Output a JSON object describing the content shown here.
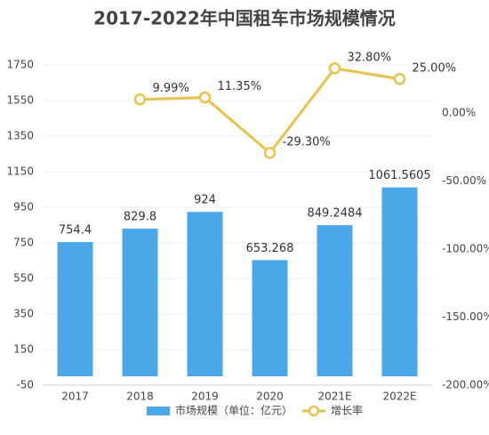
{
  "chart_data": {
    "type": "bar-line",
    "title": "2017-2022年中国租车市场规模情况",
    "categories": [
      "2017",
      "2018",
      "2019",
      "2020",
      "2021E",
      "2022E"
    ],
    "series": [
      {
        "name": "市场规模（单位：亿元）",
        "type": "bar",
        "color": "#4aa8e8",
        "values": [
          754.4,
          829.8,
          924,
          653.268,
          849.2484,
          1061.5605
        ]
      },
      {
        "name": "增长率",
        "type": "line",
        "axis": "y2",
        "color": "#e8c24a",
        "values": [
          null,
          9.99,
          11.35,
          -29.3,
          32.8,
          25.0
        ],
        "value_labels": [
          null,
          "9.99%",
          "11.35%",
          "-29.30%",
          "32.80%",
          "25.00%"
        ]
      }
    ],
    "ylim": [
      -50,
      1750
    ],
    "yticks": [
      -50,
      150,
      350,
      550,
      750,
      950,
      1150,
      1350,
      1550,
      1750
    ],
    "y2lim": [
      -200,
      35.3
    ],
    "y2ticks": [
      {
        "value": -200,
        "label": "-200.00%"
      },
      {
        "value": -150,
        "label": "-150.00%"
      },
      {
        "value": -100,
        "label": "-100.00%"
      },
      {
        "value": -50,
        "label": "-50.00%"
      },
      {
        "value": 0,
        "label": "0.00%"
      }
    ],
    "grid": true,
    "legend": "bottom"
  }
}
